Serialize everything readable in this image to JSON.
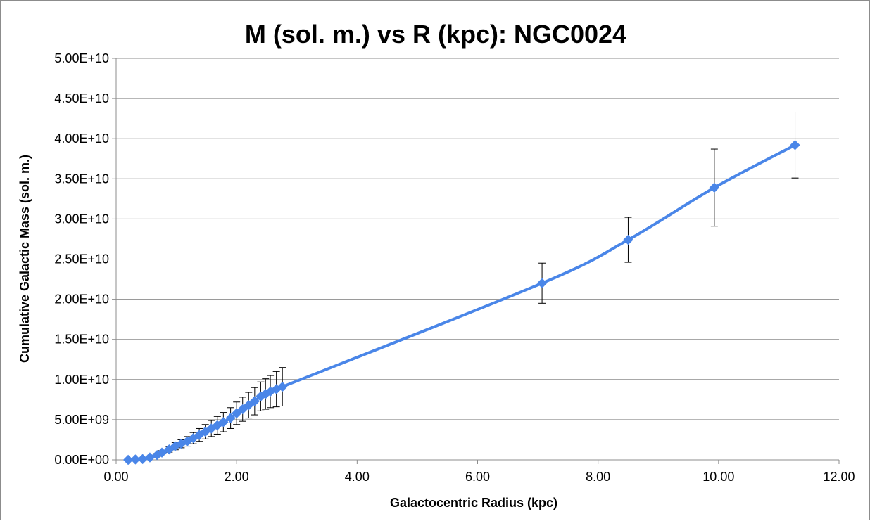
{
  "chart_data": {
    "type": "scatter",
    "title": "M (sol. m.) vs R (kpc): NGC0024",
    "xlabel": "Galactocentric Radius (kpc)",
    "ylabel": "Cumulative Galactic Mass (sol. m.)",
    "xlim": [
      0,
      12
    ],
    "ylim": [
      0,
      50000000000
    ],
    "x_ticks": [
      "0.00",
      "2.00",
      "4.00",
      "6.00",
      "8.00",
      "10.00",
      "12.00"
    ],
    "y_ticks": [
      "0.00E+00",
      "5.00E+09",
      "1.00E+10",
      "1.50E+10",
      "2.00E+10",
      "2.50E+10",
      "3.00E+10",
      "3.50E+10",
      "4.00E+10",
      "4.50E+10",
      "5.00E+10"
    ],
    "x_tick_values": [
      0,
      2,
      4,
      6,
      8,
      10,
      12
    ],
    "y_tick_values": [
      0,
      5000000000,
      10000000000,
      15000000000,
      20000000000,
      25000000000,
      30000000000,
      35000000000,
      40000000000,
      45000000000,
      50000000000
    ],
    "grid": true,
    "legend": "none",
    "line_color": "#4a86e8",
    "marker": "diamond",
    "series": [
      {
        "x": [
          0.2,
          0.32,
          0.44,
          0.56,
          0.68,
          0.76,
          0.88,
          0.98,
          1.08,
          1.18,
          1.28,
          1.38,
          1.48,
          1.58,
          1.68,
          1.78,
          1.9,
          2.0,
          2.1,
          2.2,
          2.3,
          2.4,
          2.48,
          2.56,
          2.66,
          2.76,
          7.07,
          8.5,
          9.93,
          11.27
        ],
        "y": [
          0,
          50000000,
          100000000,
          300000000,
          600000000,
          900000000,
          1300000000,
          1700000000,
          2000000000,
          2300000000,
          2700000000,
          3100000000,
          3500000000,
          3900000000,
          4300000000,
          4700000000,
          5200000000,
          5800000000,
          6300000000,
          6800000000,
          7300000000,
          7900000000,
          8200000000,
          8500000000,
          8800000000,
          9100000000,
          22000000000,
          27400000000,
          33900000000,
          39200000000
        ],
        "err": [
          0,
          20000000,
          40000000,
          100000000,
          200000000,
          250000000,
          350000000,
          450000000,
          500000000,
          600000000,
          700000000,
          800000000,
          900000000,
          1000000000,
          1100000000,
          1200000000,
          1300000000,
          1400000000,
          1500000000,
          1600000000,
          1700000000,
          1800000000,
          1900000000,
          2000000000,
          2200000000,
          2400000000,
          2500000000,
          2800000000,
          4800000000,
          4100000000
        ]
      }
    ]
  }
}
